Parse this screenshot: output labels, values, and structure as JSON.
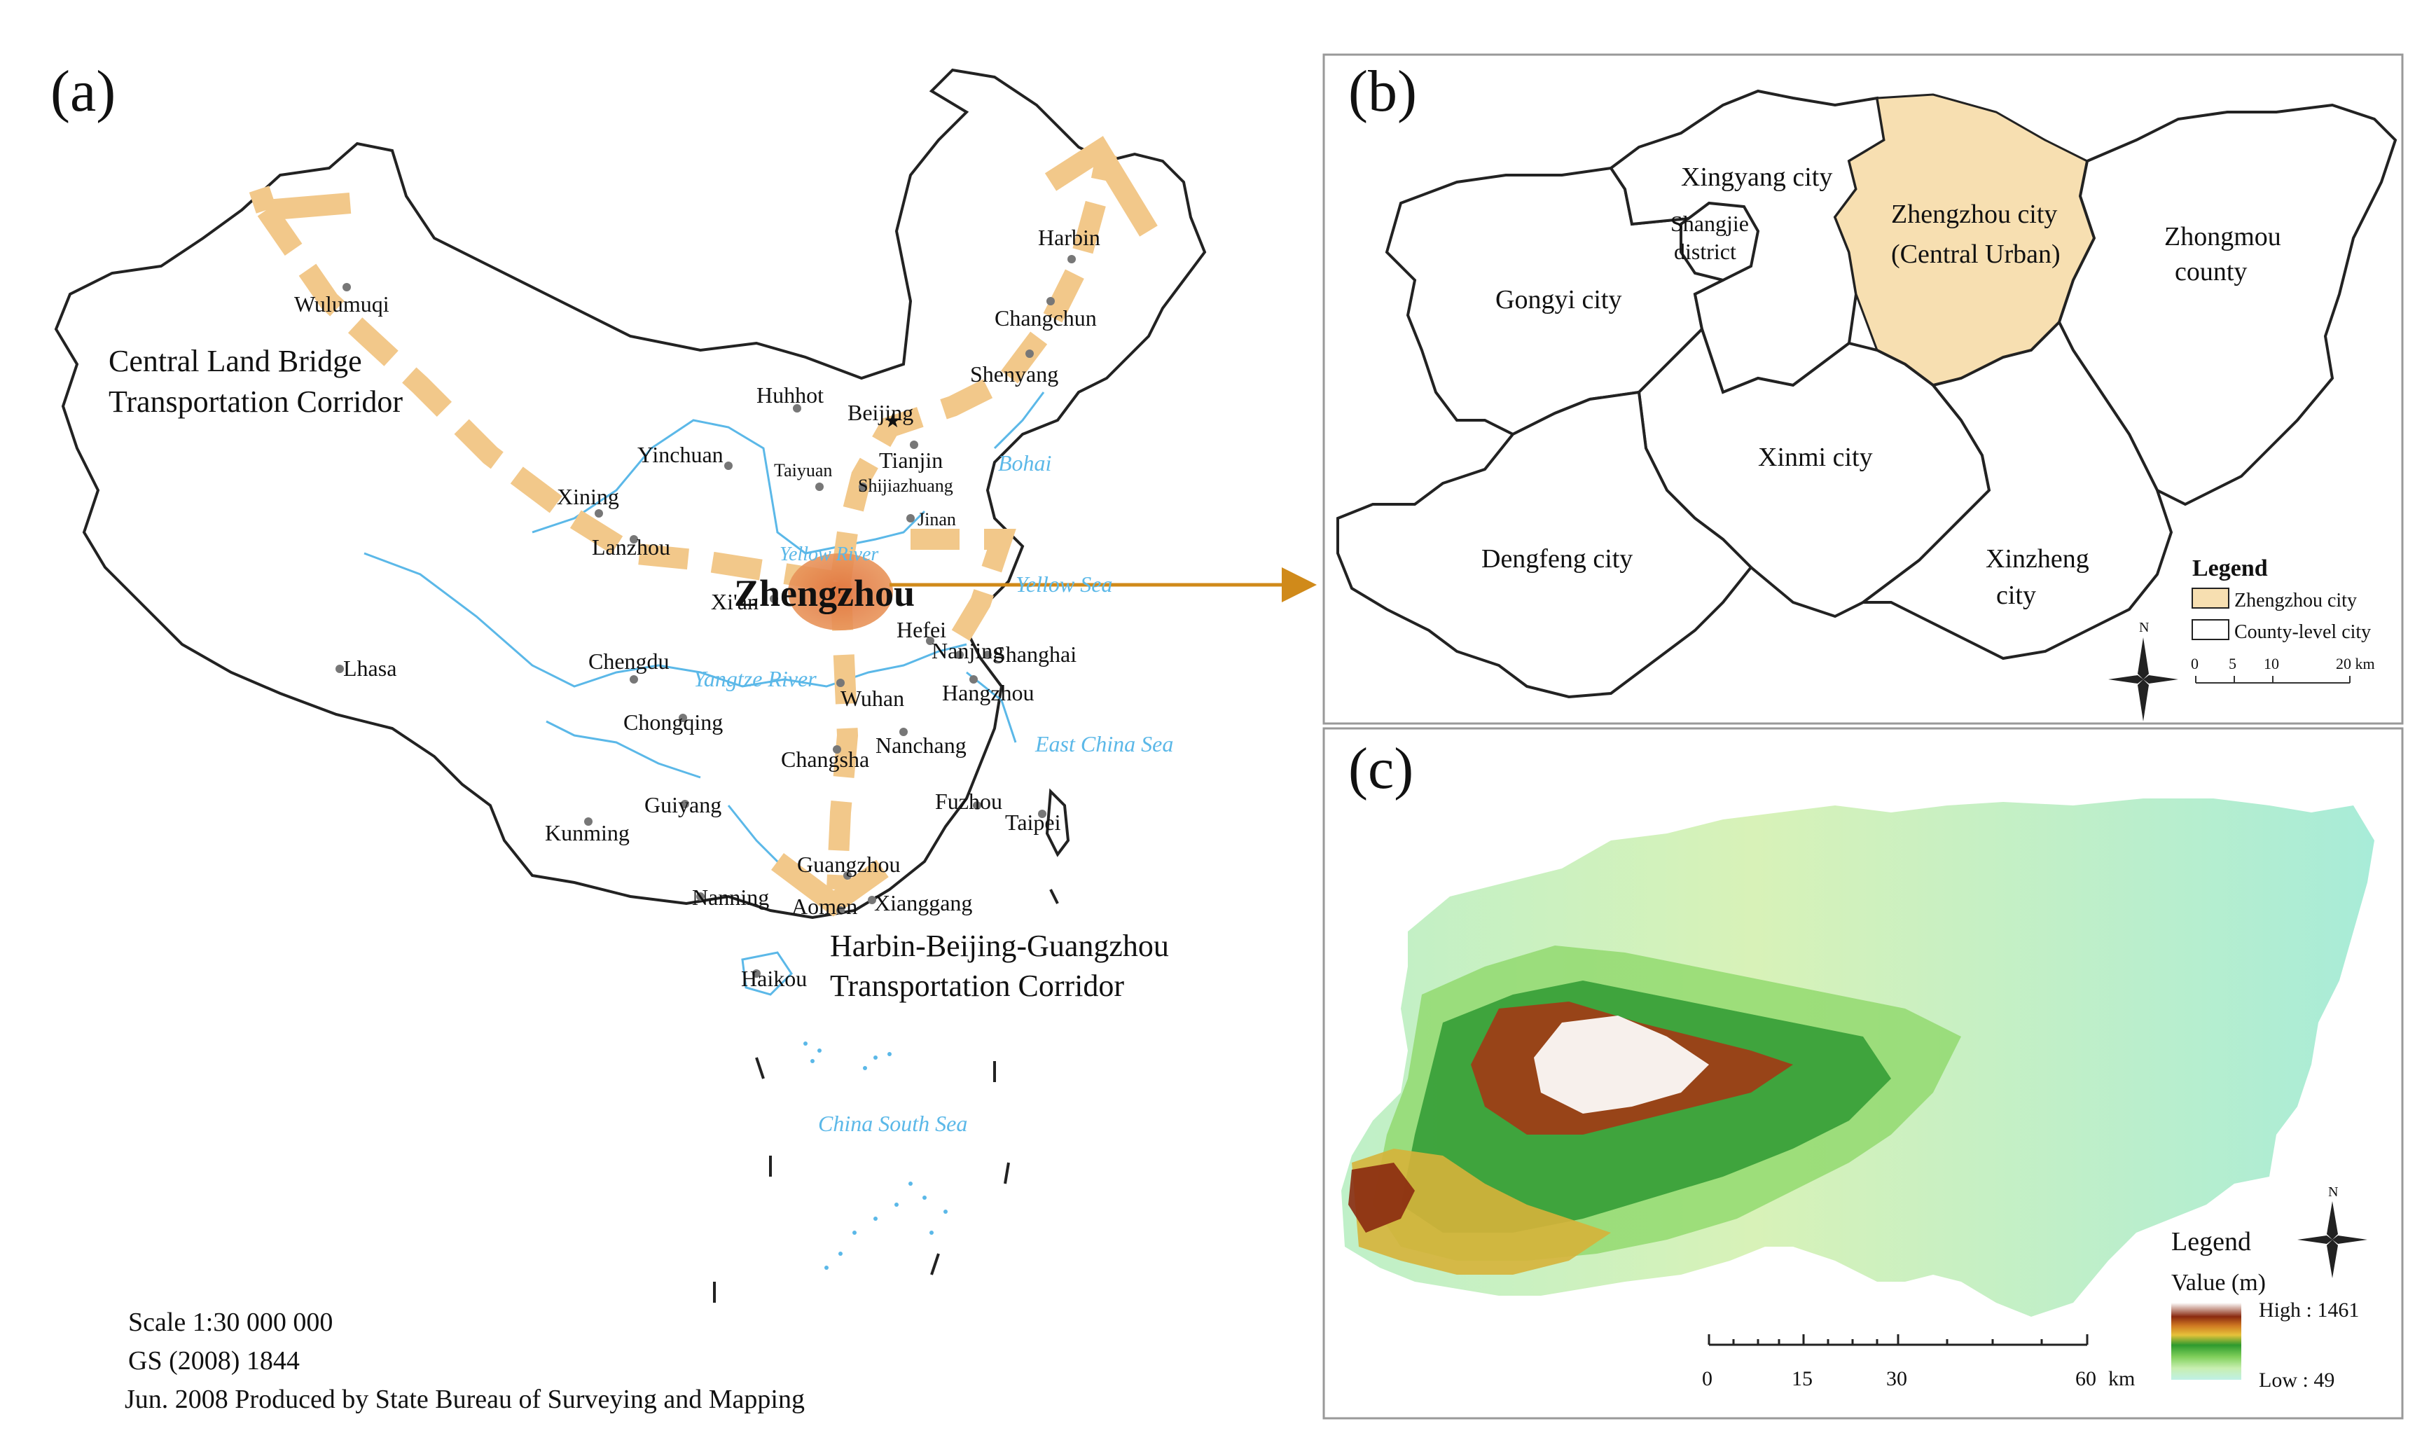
{
  "panel_a": {
    "letter": "(a)",
    "corridor_west": [
      "Central Land Bridge",
      "Transportation Corridor"
    ],
    "corridor_north_south": [
      "Harbin-Beijing-Guangzhou",
      "Transportation Corridor"
    ],
    "center_city": "Zhengzhou",
    "cities": {
      "wulumuqi": "Wulumuqi",
      "harbin": "Harbin",
      "changchun": "Changchun",
      "shenyang": "Shenyang",
      "huhhot": "Huhhot",
      "beijing": "Beijing",
      "tianjin": "Tianjin",
      "yinchuan": "Yinchuan",
      "taiyuan": "Taiyuan",
      "shijiazhuang": "Shijiazhuang",
      "jinan": "Jinan",
      "xining": "Xining",
      "lanzhou": "Lanzhou",
      "xian": "Xi'an",
      "lhasa": "Lhasa",
      "chengdu": "Chengdu",
      "hefei": "Hefei",
      "nanjing": "Nanjing",
      "shanghai": "Shanghai",
      "wuhan": "Wuhan",
      "hangzhou": "Hangzhou",
      "chongqing": "Chongqing",
      "changsha": "Changsha",
      "nanchang": "Nanchang",
      "fuzhou": "Fuzhou",
      "taipei": "Taipei",
      "guiyang": "Guiyang",
      "kunming": "Kunming",
      "guangzhou": "Guangzhou",
      "nanning": "Nanning",
      "aomen": "Aomen",
      "xianggang": "Xianggang",
      "haikou": "Haikou"
    },
    "water": {
      "bohai": "Bohai",
      "yellow_river": "Yellow River",
      "yellow_sea": "Yellow Sea",
      "yangtze_river": "Yangtze River",
      "east_china_sea": "East China Sea",
      "south_sea": "China South Sea"
    },
    "footer": [
      "Scale  1:30 000 000",
      "GS (2008) 1844",
      "Jun. 2008 Produced by State Bureau of Surveying and Mapping"
    ]
  },
  "panel_b": {
    "letter": "(b)",
    "regions": {
      "xingyang": "Xingyang city",
      "shangjie": [
        "Shangjie",
        "district"
      ],
      "zhengzhou": [
        "Zhengzhou city",
        "(Central Urban)"
      ],
      "zhongmou": [
        "Zhongmou",
        "county"
      ],
      "gongyi": "Gongyi city",
      "xinmi": "Xinmi city",
      "dengfeng": "Dengfeng city",
      "xinzheng": [
        "Xinzheng",
        "city"
      ]
    },
    "legend": {
      "title": "Legend",
      "items": [
        "Zhengzhou city",
        "County-level city"
      ],
      "scale_ticks": [
        "0",
        "5",
        "10",
        "20 km"
      ]
    },
    "north": "N"
  },
  "panel_c": {
    "letter": "(c)",
    "legend": {
      "title": "Legend",
      "value_label": "Value (m)",
      "high": "High : 1461",
      "low": "Low : 49"
    },
    "scale_ticks": [
      "0",
      "15",
      "30",
      "60",
      "km"
    ],
    "north": "N"
  },
  "colors": {
    "corridor": "#f2c88a",
    "zhengzhou_fill": "#f7dfb1",
    "river": "#5bb8e8",
    "arrow": "#d08a1a",
    "center_blob": "#e07a3a"
  }
}
